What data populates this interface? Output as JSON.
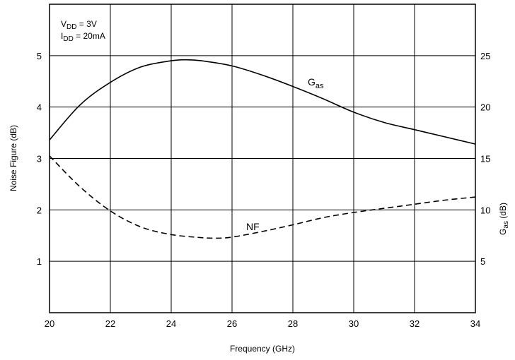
{
  "chart_data": {
    "type": "line",
    "xlabel": "Frequency (GHz)",
    "ylabel_left": "Noise Figure (dB)",
    "ylabel_right": {
      "main": "G",
      "sub": "as",
      "suffix": " (dB)"
    },
    "xlim": [
      20,
      34
    ],
    "ylim_left": [
      0,
      6
    ],
    "ylim_right": [
      0,
      30
    ],
    "x_ticks": [
      20,
      22,
      24,
      26,
      28,
      30,
      32,
      34
    ],
    "y_ticks_left": [
      1,
      2,
      3,
      4,
      5
    ],
    "y_ticks_right": [
      5,
      10,
      15,
      20,
      25
    ],
    "grid": true,
    "conditions": [
      {
        "main": "V",
        "sub": "DD",
        "rest": " = 3V"
      },
      {
        "main": "I",
        "sub": "DD",
        "rest": " = 20mA"
      }
    ],
    "series": [
      {
        "label_main": "G",
        "label_sub": "as",
        "axis": "right",
        "style": "solid",
        "x": [
          20,
          21,
          22,
          23,
          24,
          24.5,
          25,
          26,
          27,
          28,
          29,
          30,
          31,
          32,
          33,
          34
        ],
        "y": [
          16.8,
          20.2,
          22.4,
          23.9,
          24.5,
          24.6,
          24.5,
          24.0,
          23.1,
          22.0,
          20.8,
          19.5,
          18.5,
          17.8,
          17.1,
          16.4
        ]
      },
      {
        "label_main": "NF",
        "label_sub": "",
        "axis": "left",
        "style": "dashed",
        "x": [
          20,
          21,
          22,
          23,
          24,
          25,
          25.5,
          26,
          27,
          28,
          29,
          30,
          31,
          32,
          33,
          34
        ],
        "y": [
          3.05,
          2.45,
          1.98,
          1.67,
          1.52,
          1.46,
          1.45,
          1.47,
          1.58,
          1.71,
          1.85,
          1.95,
          2.03,
          2.11,
          2.19,
          2.25
        ]
      }
    ]
  }
}
